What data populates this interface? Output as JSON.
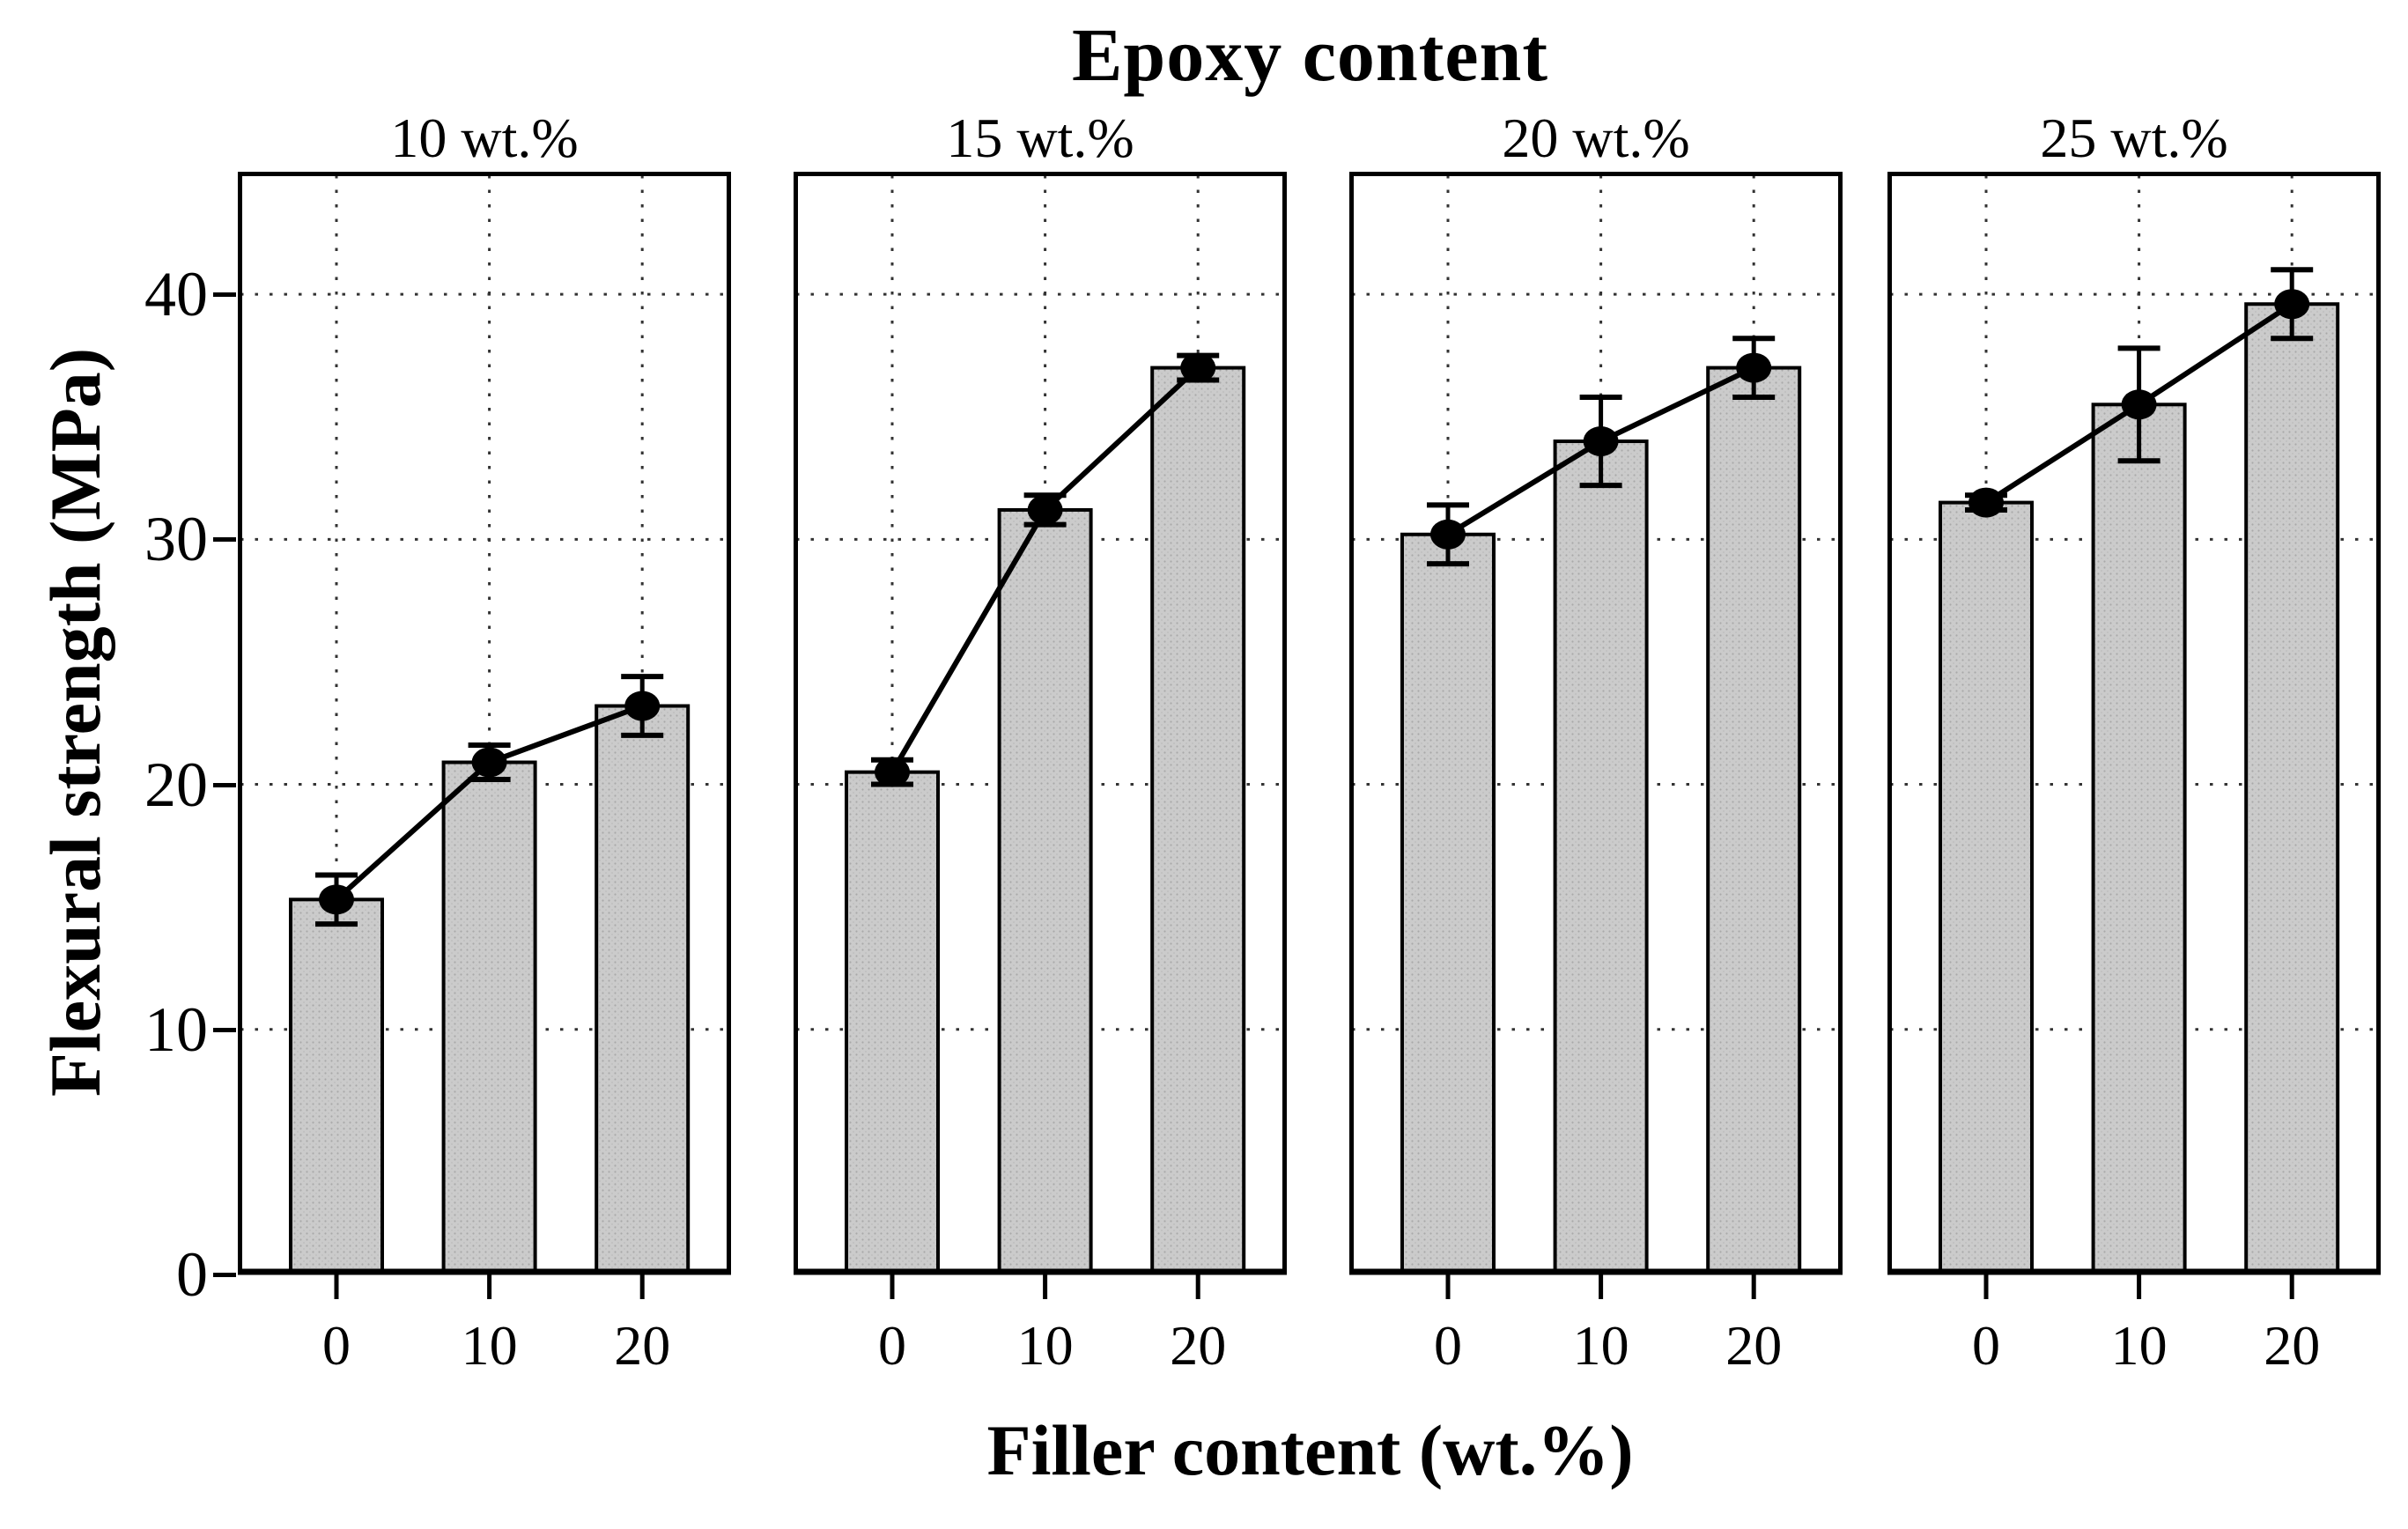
{
  "figure": {
    "title": "Epoxy content",
    "y_axis_label": "Flexural strength (MPa)",
    "x_axis_label": "Filler content (wt.%)"
  },
  "chart_data": {
    "type": "bar",
    "title": "Epoxy content",
    "xlabel": "Filler content (wt.%)",
    "ylabel": "Flexural strength (MPa)",
    "ylim": [
      0,
      45
    ],
    "y_ticks": [
      0,
      10,
      20,
      30,
      40
    ],
    "categories": [
      "0",
      "10",
      "20"
    ],
    "grid": "dotted",
    "legend": "none",
    "bar_fill": "#cbcbcb",
    "bar_edge": "#000000",
    "marker_color": "#000000",
    "panels": [
      {
        "label": "10 wt.%",
        "values": [
          15.3,
          20.9,
          23.2
        ],
        "errors": [
          1.0,
          0.7,
          1.2
        ]
      },
      {
        "label": "15 wt.%",
        "values": [
          20.5,
          31.2,
          37.0
        ],
        "errors": [
          0.5,
          0.6,
          0.5
        ]
      },
      {
        "label": "20 wt.%",
        "values": [
          30.2,
          34.0,
          37.0
        ],
        "errors": [
          1.2,
          1.8,
          1.2
        ]
      },
      {
        "label": "25 wt.%",
        "values": [
          31.5,
          35.5,
          39.6
        ],
        "errors": [
          0.3,
          2.3,
          1.4
        ]
      }
    ]
  }
}
